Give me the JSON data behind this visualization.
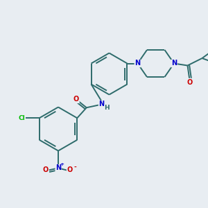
{
  "background_color": "#e8edf2",
  "bond_color": "#2d6b6b",
  "atom_colors": {
    "N": "#0000cc",
    "O": "#cc0000",
    "Cl": "#00bb00",
    "C": "#2d6b6b",
    "H": "#2d6b6b"
  },
  "figsize": [
    3.0,
    3.0
  ],
  "dpi": 100
}
